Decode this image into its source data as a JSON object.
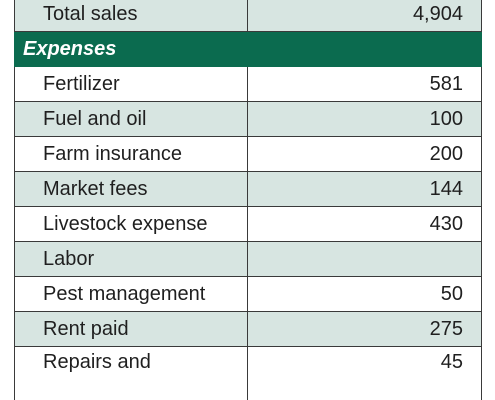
{
  "colors": {
    "section_header_bg": "#0b6b4f",
    "shaded_row_bg": "#d7e5e1",
    "plain_row_bg": "#ffffff"
  },
  "total_sales": {
    "label": "Total sales",
    "value": "4,904"
  },
  "expenses_header": "Expenses",
  "expense_rows": [
    {
      "label": "Fertilizer",
      "value": "581"
    },
    {
      "label": "Fuel and oil",
      "value": "100"
    },
    {
      "label": "Farm insurance",
      "value": "200"
    },
    {
      "label": "Market fees",
      "value": "144"
    },
    {
      "label": "Livestock expense",
      "value": "430"
    },
    {
      "label": "Labor",
      "value": ""
    },
    {
      "label": "Pest management",
      "value": "50"
    },
    {
      "label": "Rent paid",
      "value": "275"
    },
    {
      "label": "Repairs and",
      "value": "45"
    }
  ]
}
